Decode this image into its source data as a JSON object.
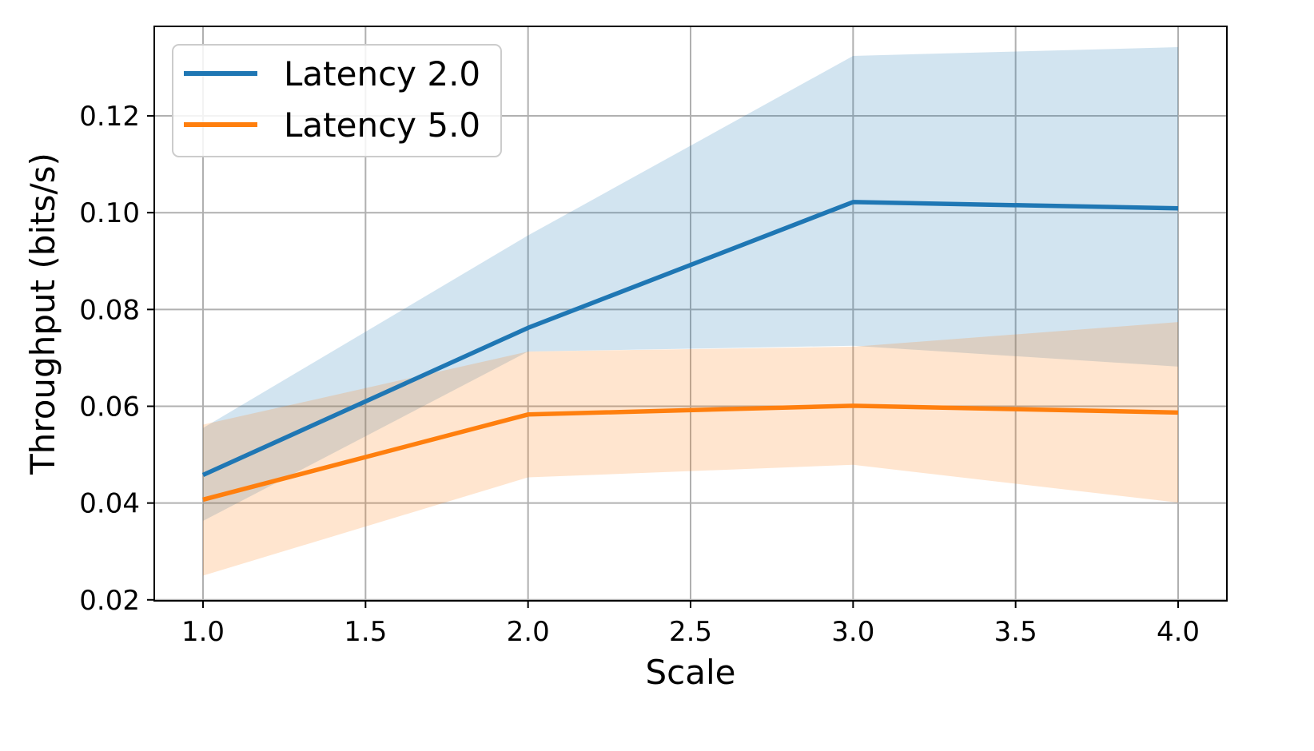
{
  "chart_data": {
    "type": "line",
    "title": "",
    "xlabel": "Scale",
    "ylabel": "Throughput (bits/s)",
    "xlim": [
      0.85,
      4.15
    ],
    "ylim": [
      0.0198,
      0.1385
    ],
    "x_ticks": [
      1.0,
      1.5,
      2.0,
      2.5,
      3.0,
      3.5,
      4.0
    ],
    "x_tick_labels": [
      "1.0",
      "1.5",
      "2.0",
      "2.5",
      "3.0",
      "3.5",
      "4.0"
    ],
    "y_ticks": [
      0.02,
      0.04,
      0.06,
      0.08,
      0.1,
      0.12
    ],
    "y_tick_labels": [
      "0.02",
      "0.04",
      "0.06",
      "0.08",
      "0.10",
      "0.12"
    ],
    "grid": true,
    "legend_position": "top-left",
    "series": [
      {
        "name": "Latency 2.0",
        "color": "#1f77b4",
        "x": [
          1.0,
          2.0,
          3.0,
          4.0
        ],
        "y": [
          0.0458,
          0.0762,
          0.1022,
          0.1009
        ],
        "band_lower": [
          0.0363,
          0.0713,
          0.0725,
          0.0682
        ],
        "band_upper": [
          0.0555,
          0.0953,
          0.1324,
          0.1342
        ]
      },
      {
        "name": "Latency 5.0",
        "color": "#ff7f0e",
        "x": [
          1.0,
          2.0,
          3.0,
          4.0
        ],
        "y": [
          0.0407,
          0.0583,
          0.0601,
          0.0587
        ],
        "band_lower": [
          0.025,
          0.0453,
          0.0479,
          0.0401
        ],
        "band_upper": [
          0.0562,
          0.0713,
          0.0723,
          0.0774
        ]
      }
    ]
  }
}
